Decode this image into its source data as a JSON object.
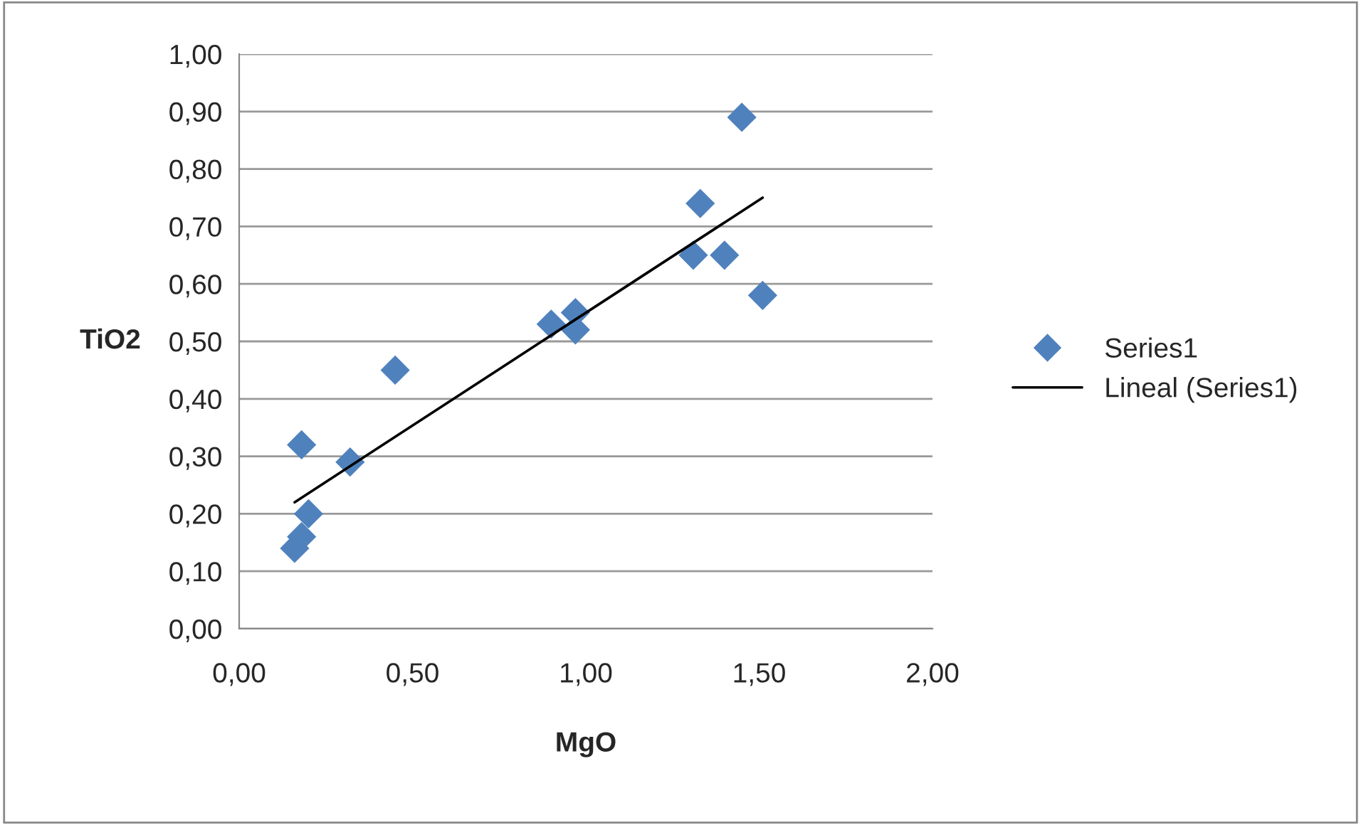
{
  "chart_data": {
    "type": "scatter",
    "xlabel": "MgO",
    "ylabel": "TiO2",
    "xlim": [
      0,
      2
    ],
    "xticks": [
      {
        "value": 0,
        "label": "0,00"
      },
      {
        "value": 0.5,
        "label": "0,50"
      },
      {
        "value": 1,
        "label": "1,00"
      },
      {
        "value": 1.5,
        "label": "1,50"
      },
      {
        "value": 2,
        "label": "2,00"
      }
    ],
    "ylim": [
      0,
      1
    ],
    "yticks": [
      {
        "value": 0,
        "label": "0,00"
      },
      {
        "value": 0.1,
        "label": "0,10"
      },
      {
        "value": 0.2,
        "label": "0,20"
      },
      {
        "value": 0.3,
        "label": "0,30"
      },
      {
        "value": 0.4,
        "label": "0,40"
      },
      {
        "value": 0.5,
        "label": "0,50"
      },
      {
        "value": 0.6,
        "label": "0,60"
      },
      {
        "value": 0.7,
        "label": "0,70"
      },
      {
        "value": 0.8,
        "label": "0,80"
      },
      {
        "value": 0.9,
        "label": "0,90"
      },
      {
        "value": 1,
        "label": "1,00"
      }
    ],
    "grid": "y",
    "legend": "right",
    "series": [
      {
        "name": "Series1",
        "marker": "diamond",
        "color": "#4f81bd",
        "x": [
          0.16,
          0.18,
          0.2,
          0.18,
          0.32,
          0.45,
          0.9,
          0.97,
          0.97,
          1.31,
          1.33,
          1.4,
          1.45,
          1.51
        ],
        "values": [
          0.14,
          0.16,
          0.2,
          0.32,
          0.29,
          0.45,
          0.53,
          0.55,
          0.52,
          0.65,
          0.74,
          0.65,
          0.89,
          0.58
        ]
      },
      {
        "name": "Lineal (Series1)",
        "type": "line",
        "color": "#000000",
        "x": [
          0.16,
          1.51
        ],
        "values": [
          0.22,
          0.75
        ]
      }
    ]
  }
}
